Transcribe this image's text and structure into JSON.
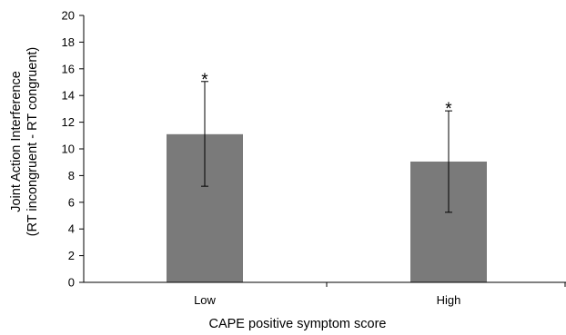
{
  "chart_data": {
    "type": "bar",
    "categories": [
      "Low",
      "High"
    ],
    "values": [
      11.1,
      9.05
    ],
    "error_bars": [
      {
        "lower": 7.2,
        "upper": 15.05
      },
      {
        "lower": 5.25,
        "upper": 12.85
      }
    ],
    "significance_markers": [
      "*",
      "*"
    ],
    "xlabel": "CAPE positive symptom score",
    "ylabel_lines": [
      "Joint Action Interference",
      "(RT incongruent - RT congruent)"
    ],
    "ylim": [
      0,
      20
    ],
    "yticks": [
      0,
      2,
      4,
      6,
      8,
      10,
      12,
      14,
      16,
      18,
      20
    ],
    "grid": false,
    "legend": "none",
    "bar_color": "#7a7a7a",
    "axis_color": "#000000"
  }
}
